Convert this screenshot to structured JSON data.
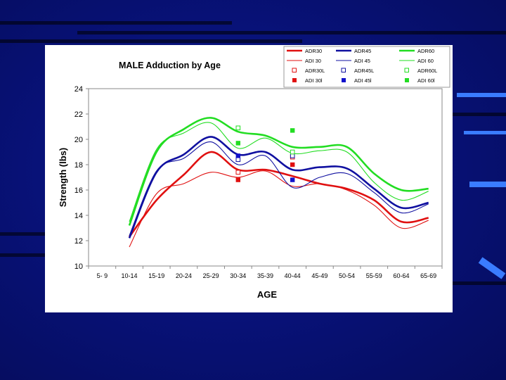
{
  "chart_data": {
    "type": "line",
    "title": "MALE Adduction by Age",
    "xlabel": "AGE",
    "ylabel": "Strength (lbs)",
    "ylim": [
      10,
      24
    ],
    "yticks": [
      "10",
      "12",
      "14",
      "16",
      "18",
      "20",
      "22",
      "24"
    ],
    "categories": [
      "5- 9",
      "10-14",
      "15-19",
      "20-24",
      "25-29",
      "30-34",
      "35-39",
      "40-44",
      "45-49",
      "50-54",
      "55-59",
      "60-64",
      "65-69"
    ],
    "grid": false,
    "legend_position": "top-right",
    "series": [
      {
        "name": "ADR30",
        "kind": "line",
        "color": "#e01010",
        "width": 2.6,
        "values": [
          null,
          12.3,
          15.2,
          17.2,
          19.0,
          17.6,
          17.6,
          17.1,
          16.5,
          16.1,
          15.2,
          13.5,
          13.8
        ]
      },
      {
        "name": "ADR45",
        "kind": "line",
        "color": "#1010a0",
        "width": 2.6,
        "values": [
          null,
          12.2,
          17.4,
          18.8,
          20.2,
          18.8,
          19.0,
          17.6,
          17.8,
          17.7,
          16.1,
          14.6,
          15.0
        ]
      },
      {
        "name": "ADR60",
        "kind": "line",
        "color": "#22dd22",
        "width": 2.6,
        "values": [
          null,
          13.2,
          19.0,
          20.8,
          21.7,
          20.6,
          20.3,
          19.4,
          19.4,
          19.4,
          17.3,
          16.0,
          16.1
        ]
      },
      {
        "name": "ADI 30",
        "kind": "line",
        "color": "#e01010",
        "width": 1.1,
        "values": [
          null,
          11.5,
          15.7,
          16.5,
          17.4,
          17.0,
          17.5,
          16.3,
          16.5,
          16.0,
          14.8,
          13.0,
          13.6
        ]
      },
      {
        "name": "ADI 45",
        "kind": "line",
        "color": "#1010a0",
        "width": 1.1,
        "values": [
          null,
          12.4,
          17.5,
          18.5,
          19.8,
          18.0,
          18.7,
          16.2,
          17.0,
          17.3,
          15.8,
          14.2,
          14.9
        ]
      },
      {
        "name": "ADI 60",
        "kind": "line",
        "color": "#22dd22",
        "width": 1.1,
        "values": [
          null,
          13.5,
          19.2,
          20.5,
          21.3,
          19.3,
          20.1,
          18.9,
          19.1,
          19.0,
          16.6,
          15.2,
          15.9
        ]
      },
      {
        "name": "ADR30L",
        "kind": "open-marker",
        "color": "#e01010",
        "values": [
          null,
          null,
          null,
          null,
          null,
          17.4,
          null,
          18.6,
          null,
          null,
          null,
          null,
          null
        ]
      },
      {
        "name": "ADR45L",
        "kind": "open-marker",
        "color": "#1010a0",
        "values": [
          null,
          null,
          null,
          null,
          null,
          18.4,
          null,
          18.7,
          null,
          null,
          null,
          null,
          null
        ]
      },
      {
        "name": "ADR60L",
        "kind": "open-marker",
        "color": "#22dd22",
        "values": [
          null,
          null,
          null,
          null,
          null,
          20.9,
          null,
          19.0,
          null,
          null,
          null,
          null,
          null
        ]
      },
      {
        "name": "ADI 30l",
        "kind": "filled-marker",
        "color": "#e01010",
        "values": [
          null,
          null,
          null,
          null,
          null,
          16.8,
          null,
          18.0,
          null,
          null,
          null,
          null,
          null
        ]
      },
      {
        "name": "ADI 45l",
        "kind": "filled-marker",
        "color": "#1010cc",
        "values": [
          null,
          null,
          null,
          null,
          null,
          18.7,
          null,
          16.8,
          null,
          null,
          null,
          null,
          null
        ]
      },
      {
        "name": "ADI 60l",
        "kind": "filled-marker",
        "color": "#22dd22",
        "values": [
          null,
          null,
          null,
          null,
          null,
          19.7,
          null,
          20.7,
          null,
          null,
          null,
          null,
          null
        ]
      }
    ]
  }
}
